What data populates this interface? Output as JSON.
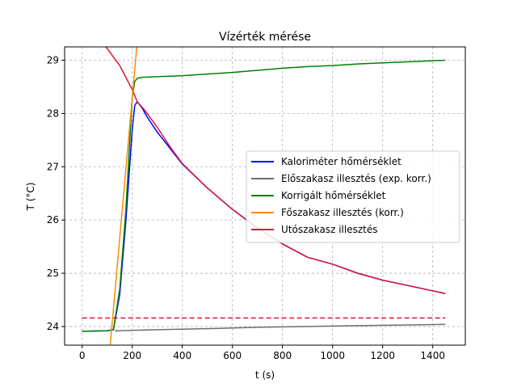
{
  "chart_data": {
    "type": "line",
    "title": "Vízérték mérése",
    "xlabel": "t (s)",
    "ylabel": "T (°C)",
    "xlim": [
      -70,
      1530
    ],
    "ylim": [
      23.65,
      29.25
    ],
    "xticks": [
      0,
      200,
      400,
      600,
      800,
      1000,
      1200,
      1400
    ],
    "yticks": [
      24,
      25,
      26,
      27,
      28,
      29
    ],
    "grid": true,
    "legend_position": "center-right",
    "series": [
      {
        "name": "Kaloriméter hőmérséklet",
        "color": "#0000ff",
        "style": "solid",
        "x": [
          0,
          100,
          125,
          150,
          175,
          200,
          210,
          220,
          240,
          260,
          300,
          350,
          400,
          500,
          600,
          700,
          800,
          900,
          1000,
          1100,
          1200,
          1300,
          1400,
          1450
        ],
        "y": [
          23.91,
          23.92,
          23.94,
          24.6,
          26.0,
          27.7,
          28.15,
          28.22,
          28.1,
          27.93,
          27.65,
          27.35,
          27.05,
          26.6,
          26.2,
          25.85,
          25.55,
          25.3,
          25.17,
          25.0,
          24.87,
          24.77,
          24.67,
          24.62
        ]
      },
      {
        "name": "Előszakasz illesztés (exp. korr.)",
        "color": "#6e6e6e",
        "style": "solid",
        "x": [
          130,
          300,
          500,
          700,
          900,
          1100,
          1300,
          1450
        ],
        "y": [
          23.92,
          23.94,
          23.96,
          23.985,
          24.0,
          24.015,
          24.03,
          24.04
        ]
      },
      {
        "name": "Korrigált hőmérséklet",
        "color": "#008000",
        "style": "solid",
        "x": [
          0,
          100,
          125,
          150,
          175,
          200,
          210,
          220,
          240,
          300,
          400,
          500,
          600,
          700,
          800,
          900,
          1000,
          1100,
          1200,
          1300,
          1400,
          1450
        ],
        "y": [
          23.91,
          23.92,
          23.94,
          24.7,
          26.2,
          28.3,
          28.6,
          28.66,
          28.68,
          28.69,
          28.71,
          28.74,
          28.77,
          28.81,
          28.85,
          28.88,
          28.9,
          28.93,
          28.95,
          28.97,
          28.99,
          29.0
        ]
      },
      {
        "name": "Főszakasz illesztés (korr.)",
        "color": "#ff8c00",
        "style": "solid",
        "x": [
          112,
          218
        ],
        "y": [
          23.65,
          29.25
        ]
      },
      {
        "name": "Utószakasz illesztés",
        "color": "#dc143c",
        "style": "solid",
        "x": [
          95,
          150,
          200,
          220,
          250,
          300,
          350,
          400,
          500,
          600,
          700,
          800,
          900,
          1000,
          1100,
          1200,
          1300,
          1400,
          1450
        ],
        "y": [
          29.25,
          28.9,
          28.45,
          28.22,
          28.06,
          27.74,
          27.38,
          27.06,
          26.6,
          26.2,
          25.85,
          25.55,
          25.3,
          25.17,
          25.0,
          24.87,
          24.77,
          24.67,
          24.62
        ]
      },
      {
        "color": "#dc143c",
        "style": "dashed",
        "x": [
          0,
          1450
        ],
        "y": [
          24.16,
          24.16
        ]
      }
    ]
  }
}
